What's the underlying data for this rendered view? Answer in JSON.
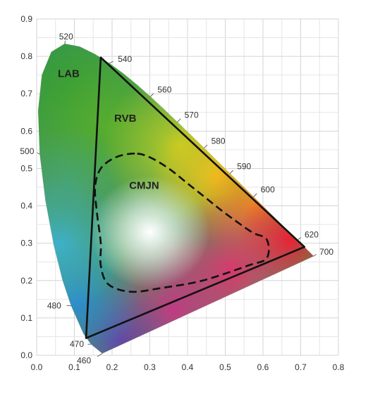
{
  "chart_data": {
    "type": "scatter",
    "title": "",
    "xlabel": "",
    "ylabel": "",
    "xlim": [
      0.0,
      0.8
    ],
    "ylim": [
      0.0,
      0.9
    ],
    "grid": true,
    "x_ticks": [
      "0.0",
      "0.1",
      "0.2",
      "0.3",
      "0.4",
      "0.5",
      "0.6",
      "0.7",
      "0.8"
    ],
    "y_ticks": [
      "0.0",
      "0.1",
      "0.2",
      "0.3",
      "0.4",
      "0.5",
      "0.6",
      "0.7",
      "0.8",
      "0.9"
    ],
    "locus": [
      {
        "x": 0.1741,
        "y": 0.005,
        "label": "460"
      },
      {
        "x": 0.144,
        "y": 0.0297,
        "label": "470"
      },
      {
        "x": 0.1241,
        "y": 0.0578
      },
      {
        "x": 0.0913,
        "y": 0.1327,
        "label": "480"
      },
      {
        "x": 0.0687,
        "y": 0.2007
      },
      {
        "x": 0.0454,
        "y": 0.295
      },
      {
        "x": 0.0235,
        "y": 0.4127
      },
      {
        "x": 0.0082,
        "y": 0.5384,
        "label": "500"
      },
      {
        "x": 0.0039,
        "y": 0.6548
      },
      {
        "x": 0.0139,
        "y": 0.7502
      },
      {
        "x": 0.0389,
        "y": 0.812
      },
      {
        "x": 0.0743,
        "y": 0.8338,
        "label": "520"
      },
      {
        "x": 0.1142,
        "y": 0.8262
      },
      {
        "x": 0.1547,
        "y": 0.8059
      },
      {
        "x": 0.1929,
        "y": 0.7816,
        "label": "540"
      },
      {
        "x": 0.2296,
        "y": 0.7543
      },
      {
        "x": 0.2658,
        "y": 0.7243
      },
      {
        "x": 0.3016,
        "y": 0.6923,
        "label": "560"
      },
      {
        "x": 0.3373,
        "y": 0.6589
      },
      {
        "x": 0.3731,
        "y": 0.6245,
        "label": "570"
      },
      {
        "x": 0.4087,
        "y": 0.5896
      },
      {
        "x": 0.4441,
        "y": 0.5547,
        "label": "580"
      },
      {
        "x": 0.4788,
        "y": 0.5202
      },
      {
        "x": 0.5125,
        "y": 0.4866,
        "label": "590"
      },
      {
        "x": 0.5448,
        "y": 0.4544
      },
      {
        "x": 0.5752,
        "y": 0.4242,
        "label": "600"
      },
      {
        "x": 0.6029,
        "y": 0.3965
      },
      {
        "x": 0.627,
        "y": 0.3725
      },
      {
        "x": 0.6482,
        "y": 0.3514
      },
      {
        "x": 0.6658,
        "y": 0.334
      },
      {
        "x": 0.6915,
        "y": 0.3083,
        "label": "620"
      },
      {
        "x": 0.7347,
        "y": 0.2653,
        "label": "700"
      }
    ],
    "regions": [
      {
        "name": "LAB",
        "label": "LAB",
        "style": "gamut"
      },
      {
        "name": "RVB",
        "label": "RVB",
        "style": "solid",
        "points": [
          [
            0.71,
            0.29
          ],
          [
            0.17,
            0.797
          ],
          [
            0.131,
            0.046
          ]
        ]
      },
      {
        "name": "CMJN",
        "label": "CMJN",
        "style": "dashed",
        "points": [
          [
            0.26,
            0.54
          ],
          [
            0.21,
            0.53
          ],
          [
            0.17,
            0.5
          ],
          [
            0.155,
            0.45
          ],
          [
            0.16,
            0.38
          ],
          [
            0.17,
            0.3
          ],
          [
            0.17,
            0.24
          ],
          [
            0.19,
            0.19
          ],
          [
            0.25,
            0.17
          ],
          [
            0.33,
            0.18
          ],
          [
            0.44,
            0.2
          ],
          [
            0.56,
            0.24
          ],
          [
            0.61,
            0.26
          ],
          [
            0.61,
            0.31
          ],
          [
            0.57,
            0.33
          ],
          [
            0.5,
            0.38
          ],
          [
            0.45,
            0.42
          ],
          [
            0.4,
            0.46
          ],
          [
            0.35,
            0.5
          ],
          [
            0.3,
            0.53
          ]
        ]
      }
    ]
  }
}
